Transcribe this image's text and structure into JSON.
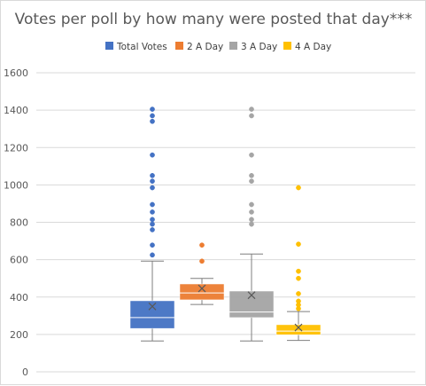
{
  "chart_data": {
    "type": "box",
    "title": "Votes per poll by how many were posted that day***",
    "xlabel": "",
    "ylabel": "",
    "ylim": [
      0,
      1600
    ],
    "yticks": [
      0,
      200,
      400,
      600,
      800,
      1000,
      1200,
      1400,
      1600
    ],
    "grid": true,
    "legend_position": "top",
    "series": [
      {
        "name": "Total Votes",
        "color": "#4472C4",
        "min": 165,
        "q1": 232,
        "median": 290,
        "q3": 380,
        "max": 592,
        "mean": 350,
        "outliers": [
          625,
          678,
          760,
          790,
          815,
          855,
          895,
          985,
          1020,
          1050,
          1160,
          1340,
          1370,
          1405
        ]
      },
      {
        "name": "2 A Day",
        "color": "#ED7D31",
        "min": 360,
        "q1": 385,
        "median": 422,
        "q3": 470,
        "max": 500,
        "mean": 446,
        "outliers": [
          592,
          678
        ]
      },
      {
        "name": "3 A Day",
        "color": "#A5A5A5",
        "min": 165,
        "q1": 290,
        "median": 320,
        "q3": 432,
        "max": 630,
        "mean": 410,
        "outliers": [
          790,
          815,
          855,
          895,
          1020,
          1050,
          1160,
          1370,
          1405
        ]
      },
      {
        "name": "4 A Day",
        "color": "#FFC000",
        "min": 168,
        "q1": 198,
        "median": 218,
        "q3": 252,
        "max": 322,
        "mean": 237,
        "outliers": [
          338,
          358,
          378,
          418,
          500,
          538,
          683,
          985
        ]
      }
    ]
  }
}
